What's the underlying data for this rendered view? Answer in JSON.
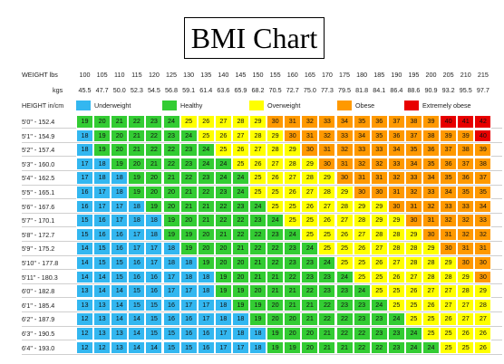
{
  "chart_data": {
    "type": "heatmap",
    "title": "BMI Chart",
    "weight_header": {
      "lbs_label": "WEIGHT lbs",
      "kgs_label": "kgs"
    },
    "height_header": "HEIGHT in/cm",
    "weights_lbs": [
      "100",
      "105",
      "110",
      "115",
      "120",
      "125",
      "130",
      "135",
      "140",
      "145",
      "150",
      "155",
      "160",
      "165",
      "170",
      "175",
      "180",
      "185",
      "190",
      "195",
      "200",
      "205",
      "210",
      "215"
    ],
    "weights_kgs": [
      "45.5",
      "47.7",
      "50.0",
      "52.3",
      "54.5",
      "56.8",
      "59.1",
      "61.4",
      "63.6",
      "65.9",
      "68.2",
      "70.5",
      "72.7",
      "75.0",
      "77.3",
      "79.5",
      "81.8",
      "84.1",
      "86.4",
      "88.6",
      "90.9",
      "93.2",
      "95.5",
      "97.7"
    ],
    "heights": [
      "5'0\" - 152.4",
      "5'1\" - 154.9",
      "5'2\" - 157.4",
      "5'3\" - 160.0",
      "5'4\" - 162.5",
      "5'5\" - 165.1",
      "5'6\" - 167.6",
      "5'7\" - 170.1",
      "5'8\" - 172.7",
      "5'9\" - 175.2",
      "5'10\" - 177.8",
      "5'11\" - 180.3",
      "6'0\" - 182.8",
      "6'1\" - 185.4",
      "6'2\" - 187.9",
      "6'3\" - 190.5",
      "6'4\" - 193.0"
    ],
    "bmi": [
      [
        19,
        20,
        21,
        22,
        23,
        24,
        25,
        26,
        27,
        28,
        29,
        30,
        31,
        32,
        33,
        34,
        35,
        36,
        37,
        38,
        39,
        40,
        41,
        42
      ],
      [
        18,
        19,
        20,
        21,
        22,
        23,
        24,
        25,
        26,
        27,
        28,
        29,
        30,
        31,
        32,
        33,
        34,
        35,
        36,
        37,
        38,
        39,
        39,
        40
      ],
      [
        18,
        19,
        20,
        21,
        22,
        22,
        23,
        24,
        25,
        26,
        27,
        28,
        29,
        30,
        31,
        32,
        33,
        33,
        34,
        35,
        36,
        37,
        38,
        39
      ],
      [
        17,
        18,
        19,
        20,
        21,
        22,
        23,
        24,
        24,
        25,
        26,
        27,
        28,
        29,
        30,
        31,
        32,
        32,
        33,
        34,
        35,
        36,
        37,
        38
      ],
      [
        17,
        18,
        18,
        19,
        20,
        21,
        22,
        23,
        24,
        24,
        25,
        26,
        27,
        28,
        29,
        30,
        31,
        31,
        32,
        33,
        34,
        35,
        36,
        37
      ],
      [
        16,
        17,
        18,
        19,
        20,
        20,
        21,
        22,
        23,
        24,
        25,
        25,
        26,
        27,
        28,
        29,
        30,
        30,
        31,
        32,
        33,
        34,
        35,
        35
      ],
      [
        16,
        17,
        17,
        18,
        19,
        20,
        21,
        21,
        22,
        23,
        24,
        25,
        25,
        26,
        27,
        28,
        29,
        29,
        30,
        31,
        32,
        33,
        33,
        34
      ],
      [
        15,
        16,
        17,
        18,
        18,
        19,
        20,
        21,
        22,
        22,
        23,
        24,
        25,
        25,
        26,
        27,
        28,
        29,
        29,
        30,
        31,
        32,
        32,
        33
      ],
      [
        15,
        16,
        16,
        17,
        18,
        19,
        19,
        20,
        21,
        22,
        22,
        23,
        24,
        25,
        25,
        26,
        27,
        28,
        28,
        29,
        30,
        31,
        32,
        32
      ],
      [
        14,
        15,
        16,
        17,
        17,
        18,
        19,
        20,
        20,
        21,
        22,
        22,
        23,
        24,
        25,
        25,
        26,
        27,
        28,
        28,
        29,
        30,
        31,
        31
      ],
      [
        14,
        15,
        15,
        16,
        17,
        18,
        18,
        19,
        20,
        20,
        21,
        22,
        23,
        23,
        24,
        25,
        25,
        26,
        27,
        28,
        28,
        29,
        30,
        30
      ],
      [
        14,
        14,
        15,
        16,
        16,
        17,
        18,
        18,
        19,
        20,
        21,
        21,
        22,
        23,
        23,
        24,
        25,
        25,
        26,
        27,
        28,
        28,
        29,
        30
      ],
      [
        13,
        14,
        14,
        15,
        16,
        17,
        17,
        18,
        19,
        19,
        20,
        21,
        21,
        22,
        23,
        23,
        24,
        25,
        25,
        26,
        27,
        27,
        28,
        29
      ],
      [
        13,
        13,
        14,
        15,
        15,
        16,
        17,
        17,
        18,
        19,
        19,
        20,
        21,
        21,
        22,
        23,
        23,
        24,
        25,
        25,
        26,
        27,
        27,
        28
      ],
      [
        12,
        13,
        14,
        14,
        15,
        16,
        16,
        17,
        18,
        18,
        19,
        20,
        20,
        21,
        22,
        22,
        23,
        23,
        24,
        25,
        25,
        26,
        27,
        27
      ],
      [
        12,
        13,
        13,
        14,
        15,
        15,
        16,
        16,
        17,
        18,
        18,
        19,
        20,
        20,
        21,
        22,
        22,
        23,
        23,
        24,
        25,
        25,
        26,
        26
      ],
      [
        12,
        12,
        13,
        14,
        14,
        15,
        15,
        16,
        17,
        17,
        18,
        19,
        19,
        20,
        21,
        21,
        22,
        22,
        23,
        24,
        24,
        25,
        25,
        26
      ]
    ],
    "categories": [
      {
        "name": "Underweight",
        "max_bmi": 18,
        "color": "#33b7f0"
      },
      {
        "name": "Healthy",
        "max_bmi": 24,
        "color": "#33cc33"
      },
      {
        "name": "Overweight",
        "max_bmi": 29,
        "color": "#ffff00"
      },
      {
        "name": "Obese",
        "max_bmi": 39,
        "color": "#ff9900"
      },
      {
        "name": "Extremely obese",
        "max_bmi": 99,
        "color": "#e80000"
      }
    ]
  }
}
